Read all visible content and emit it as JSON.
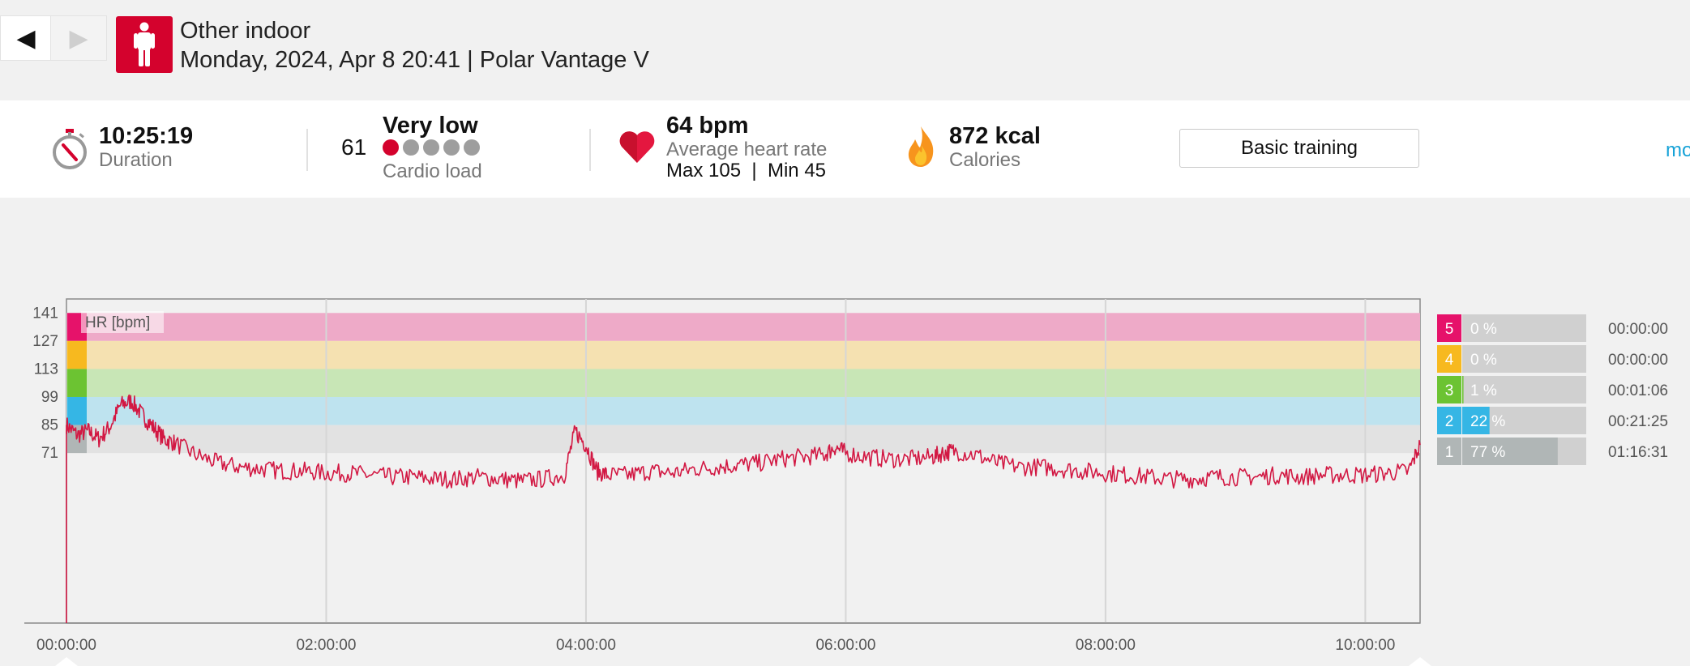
{
  "header": {
    "back_glyph": "◀",
    "forward_glyph": "▶",
    "sport_icon": "person-standing-icon",
    "sport_name": "Other indoor",
    "session_meta": "Monday, 2024, Apr 8 20:41 | Polar Vantage V"
  },
  "summary": {
    "duration_value": "10:25:19",
    "duration_label": "Duration",
    "cardio_load_value": "61",
    "cardio_load_level": "Very low",
    "cardio_load_dots_filled": 1,
    "cardio_load_dots_total": 5,
    "cardio_load_label": "Cardio load",
    "avg_hr_value": "64 bpm",
    "avg_hr_label": "Average heart rate",
    "hr_max": "Max 105",
    "hr_sep": "|",
    "hr_min": "Min 45",
    "calories_value": "872 kcal",
    "calories_label": "Calories",
    "training_benefit": "Basic training",
    "more_link": "mo",
    "colors": {
      "accent": "#d4022d",
      "link": "#16a2d7",
      "flame": "#f7941d"
    }
  },
  "chart_data": {
    "type": "line",
    "legend_label": "HR [bpm]",
    "y_ticks": [
      141,
      127,
      113,
      99,
      85,
      71
    ],
    "ylim": [
      -14,
      148
    ],
    "x_ticks": [
      "00:00:00",
      "02:00:00",
      "04:00:00",
      "06:00:00",
      "08:00:00",
      "10:00:00"
    ],
    "xlim_seconds": [
      0,
      37519
    ],
    "series": [
      {
        "color": "#d21843",
        "x": [
          0,
          300,
          600,
          900,
          1200,
          1500,
          1800,
          2100,
          2400,
          2700,
          3000,
          3600,
          4200,
          4800,
          5400,
          6000,
          6600,
          7200,
          7800,
          8400,
          9000,
          9600,
          10200,
          10800,
          11400,
          12000,
          12600,
          13200,
          13800,
          14100,
          14400,
          14700,
          15000,
          15600,
          16200,
          16800,
          17400,
          18000,
          18600,
          19200,
          19800,
          20400,
          21000,
          21300,
          21600,
          22200,
          22800,
          23400,
          24000,
          24300,
          24600,
          25200,
          25800,
          26400,
          27000,
          27600,
          28200,
          28800,
          29400,
          30000,
          30600,
          31200,
          31800,
          32400,
          33000,
          33600,
          34200,
          34800,
          35400,
          36000,
          36600,
          37200,
          37519
        ],
        "y": [
          85,
          80,
          82,
          78,
          84,
          95,
          97,
          90,
          84,
          78,
          76,
          70,
          66,
          64,
          63,
          62,
          62,
          61,
          61,
          60,
          59,
          59,
          58,
          58,
          59,
          58,
          57,
          58,
          60,
          82,
          75,
          62,
          60,
          60,
          62,
          61,
          63,
          64,
          65,
          66,
          68,
          69,
          70,
          74,
          71,
          69,
          68,
          68,
          69,
          71,
          72,
          70,
          66,
          64,
          64,
          63,
          62,
          61,
          60,
          59,
          58,
          58,
          59,
          59,
          59,
          60,
          59,
          60,
          60,
          60,
          61,
          62,
          75
        ]
      }
    ],
    "zones": [
      {
        "num": "5",
        "range": [
          127,
          141
        ],
        "percent": "0 %",
        "fraction": 0.0,
        "time": "00:00:00",
        "color": "#e6126a",
        "band": "#eeaac8"
      },
      {
        "num": "4",
        "range": [
          113,
          127
        ],
        "percent": "0 %",
        "fraction": 0.0,
        "time": "00:00:00",
        "color": "#f7b91f",
        "band": "#f5e1b1"
      },
      {
        "num": "3",
        "range": [
          99,
          113
        ],
        "percent": "1 %",
        "fraction": 0.01,
        "time": "00:01:06",
        "color": "#6cc332",
        "band": "#c8e6b6"
      },
      {
        "num": "2",
        "range": [
          85,
          99
        ],
        "percent": "22 %",
        "fraction": 0.22,
        "time": "00:21:25",
        "color": "#35b6e5",
        "band": "#bee3ef"
      },
      {
        "num": "1",
        "range": [
          71,
          85
        ],
        "percent": "77 %",
        "fraction": 0.77,
        "time": "01:16:31",
        "color": "#b0b6b6",
        "band": "#e2e2e2"
      }
    ],
    "grid": true,
    "legend_position": "top-left"
  }
}
